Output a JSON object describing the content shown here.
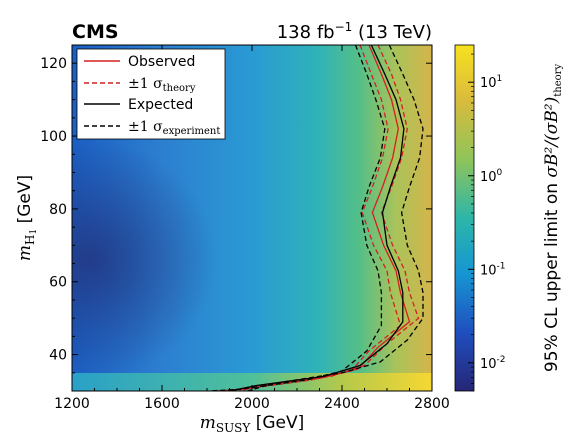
{
  "header": {
    "experiment": "CMS",
    "lumi_value": "138 fb",
    "lumi_exponent": "−1",
    "lumi_energy": " (13 TeV)"
  },
  "colorbar": {
    "label_prefix": "95% CL upper limit on ",
    "label_math": "σB²/(σB²)",
    "label_math_sub": "theory",
    "scale": "log",
    "ticks": [
      {
        "base": "10",
        "exp": "1",
        "value": 10
      },
      {
        "base": "10",
        "exp": "0",
        "value": 1
      },
      {
        "base": "10",
        "exp": "-1",
        "value": 0.1
      },
      {
        "base": "10",
        "exp": "-2",
        "value": 0.01
      }
    ],
    "range": [
      0.005,
      25
    ],
    "colormap": [
      "#262676",
      "#1f4fbf",
      "#1696d2",
      "#2db6a8",
      "#8fc45a",
      "#d9bb3c",
      "#f7e11f"
    ]
  },
  "chart_data": {
    "type": "heatmap",
    "xlabel_main": "m",
    "xlabel_sub": "SUSY",
    "xlabel_unit": " [GeV]",
    "ylabel_main": "m",
    "ylabel_sub": "H",
    "ylabel_subsub": "1",
    "ylabel_unit": " [GeV]",
    "xlim": [
      1200,
      2800
    ],
    "ylim": [
      30,
      125
    ],
    "xticks": [
      "1200",
      "1600",
      "2000",
      "2400",
      "2800"
    ],
    "xtick_values": [
      1200,
      1600,
      2000,
      2400,
      2800
    ],
    "yticks": [
      "40",
      "60",
      "80",
      "100",
      "120"
    ],
    "ytick_values": [
      40,
      60,
      80,
      100,
      120
    ],
    "legend": {
      "position": "top-left",
      "entries": [
        {
          "label": "Observed",
          "color": "#d42020",
          "dash": "solid"
        },
        {
          "label": "±1 σ",
          "sub": "theory",
          "color": "#d42020",
          "dash": "dashed"
        },
        {
          "label": "Expected",
          "color": "#000000",
          "dash": "solid"
        },
        {
          "label": "±1 σ",
          "sub": "experiment",
          "color": "#000000",
          "dash": "dashed"
        }
      ]
    },
    "series": [
      {
        "name": "Observed",
        "color": "#d42020",
        "dash": "solid",
        "points": [
          [
            2520,
            125
          ],
          [
            2575,
            117
          ],
          [
            2620,
            110
          ],
          [
            2650,
            102
          ],
          [
            2625,
            94
          ],
          [
            2580,
            86
          ],
          [
            2535,
            79
          ],
          [
            2585,
            70
          ],
          [
            2640,
            63
          ],
          [
            2660,
            57
          ],
          [
            2700,
            49
          ],
          [
            2560,
            42
          ],
          [
            2470,
            36
          ],
          [
            2300,
            33.5
          ],
          [
            2000,
            31
          ],
          [
            1880,
            30
          ]
        ]
      },
      {
        "name": "Observed +1σ theory",
        "color": "#d42020",
        "dash": "dashed",
        "points": [
          [
            2560,
            125
          ],
          [
            2620,
            117
          ],
          [
            2660,
            110
          ],
          [
            2690,
            102
          ],
          [
            2665,
            94
          ],
          [
            2620,
            86
          ],
          [
            2575,
            79
          ],
          [
            2625,
            70
          ],
          [
            2680,
            63
          ],
          [
            2700,
            57
          ],
          [
            2740,
            50
          ],
          [
            2600,
            43
          ],
          [
            2500,
            37
          ],
          [
            2350,
            34
          ],
          [
            2050,
            31.5
          ],
          [
            1940,
            30
          ]
        ]
      },
      {
        "name": "Observed -1σ theory",
        "color": "#d42020",
        "dash": "dashed",
        "points": [
          [
            2480,
            125
          ],
          [
            2530,
            117
          ],
          [
            2575,
            110
          ],
          [
            2605,
            102
          ],
          [
            2580,
            94
          ],
          [
            2535,
            86
          ],
          [
            2490,
            79
          ],
          [
            2540,
            70
          ],
          [
            2600,
            63
          ],
          [
            2615,
            57
          ],
          [
            2660,
            48
          ],
          [
            2520,
            41
          ],
          [
            2440,
            35.5
          ],
          [
            2260,
            33
          ],
          [
            1960,
            30.5
          ],
          [
            1840,
            30
          ]
        ]
      },
      {
        "name": "Expected",
        "color": "#000000",
        "dash": "solid",
        "points": [
          [
            2530,
            125
          ],
          [
            2590,
            117
          ],
          [
            2640,
            110
          ],
          [
            2675,
            102
          ],
          [
            2660,
            94
          ],
          [
            2615,
            86
          ],
          [
            2580,
            79
          ],
          [
            2600,
            70
          ],
          [
            2650,
            63
          ],
          [
            2670,
            57
          ],
          [
            2670,
            49
          ],
          [
            2600,
            43
          ],
          [
            2480,
            37
          ],
          [
            2320,
            34
          ],
          [
            2020,
            31.5
          ],
          [
            1900,
            30
          ]
        ]
      },
      {
        "name": "Expected +1σ experiment",
        "color": "#000000",
        "dash": "dashed",
        "points": [
          [
            2610,
            125
          ],
          [
            2670,
            117
          ],
          [
            2720,
            110
          ],
          [
            2760,
            102
          ],
          [
            2745,
            94
          ],
          [
            2700,
            86
          ],
          [
            2665,
            79
          ],
          [
            2690,
            70
          ],
          [
            2740,
            63
          ],
          [
            2760,
            57
          ],
          [
            2760,
            50
          ],
          [
            2690,
            44
          ],
          [
            2570,
            38
          ],
          [
            2400,
            35
          ],
          [
            2090,
            32
          ],
          [
            1980,
            30
          ]
        ]
      },
      {
        "name": "Expected -1σ experiment",
        "color": "#000000",
        "dash": "dashed",
        "points": [
          [
            2460,
            125
          ],
          [
            2510,
            117
          ],
          [
            2550,
            110
          ],
          [
            2590,
            102
          ],
          [
            2570,
            94
          ],
          [
            2520,
            86
          ],
          [
            2485,
            79
          ],
          [
            2510,
            70
          ],
          [
            2560,
            63
          ],
          [
            2575,
            57
          ],
          [
            2575,
            48
          ],
          [
            2510,
            41
          ],
          [
            2400,
            35.5
          ],
          [
            2240,
            33
          ],
          [
            1950,
            30.5
          ],
          [
            1810,
            30
          ]
        ]
      }
    ]
  }
}
